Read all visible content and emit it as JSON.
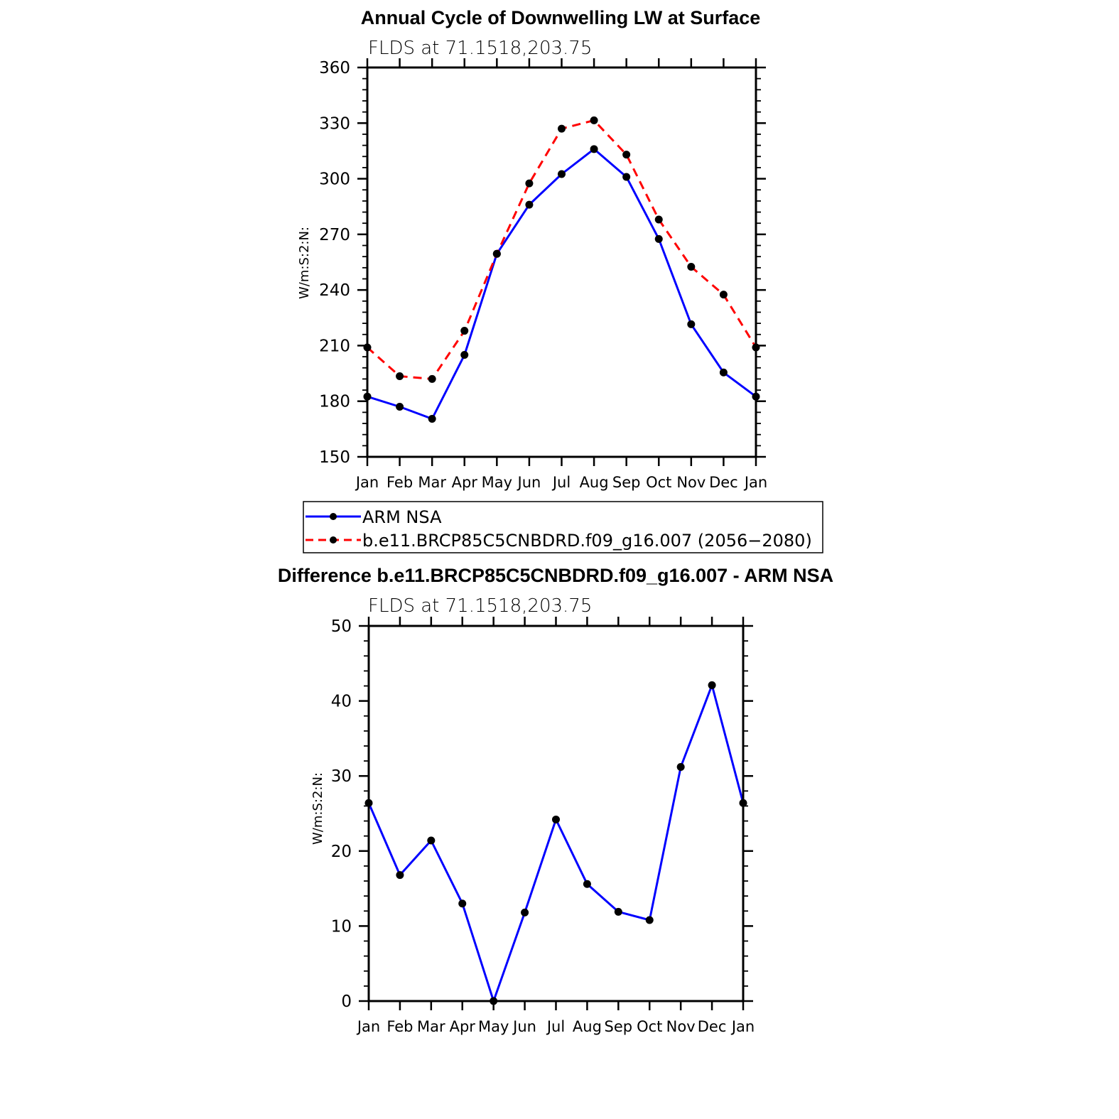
{
  "chart_data": [
    {
      "type": "line",
      "title": "Annual Cycle of Downwelling LW at Surface",
      "subtitle": "FLDS at 71.1518,203.75",
      "ylabel": "W/m:S:2:N:",
      "xlabel": "",
      "categories": [
        "Jan",
        "Feb",
        "Mar",
        "Apr",
        "May",
        "Jun",
        "Jul",
        "Aug",
        "Sep",
        "Oct",
        "Nov",
        "Dec",
        "Jan"
      ],
      "ylim": [
        150,
        360
      ],
      "yticks": [
        150,
        180,
        210,
        240,
        270,
        300,
        330,
        360
      ],
      "series": [
        {
          "name": "ARM NSA",
          "color": "#0000ff",
          "dash": "solid",
          "values": [
            182.5,
            177,
            170.5,
            205,
            259.5,
            286,
            302.5,
            316,
            301,
            267.5,
            221.5,
            195.5,
            182.5
          ]
        },
        {
          "name": "b.e11.BRCP85C5CNBDRD.f09_g16.007 (2056−2080)",
          "color": "#ff0000",
          "dash": "dashed",
          "values": [
            209,
            193.5,
            192,
            218,
            259.5,
            297.5,
            327,
            331.5,
            313,
            278,
            252.5,
            237.5,
            209
          ]
        }
      ],
      "legend_position": "below"
    },
    {
      "type": "line",
      "title": "Difference b.e11.BRCP85C5CNBDRD.f09_g16.007 - ARM NSA",
      "subtitle": "FLDS at 71.1518,203.75",
      "ylabel": "W/m:S:2:N:",
      "xlabel": "",
      "categories": [
        "Jan",
        "Feb",
        "Mar",
        "Apr",
        "May",
        "Jun",
        "Jul",
        "Aug",
        "Sep",
        "Oct",
        "Nov",
        "Dec",
        "Jan"
      ],
      "ylim": [
        0,
        50
      ],
      "yticks": [
        0,
        10,
        20,
        30,
        40,
        50
      ],
      "series": [
        {
          "color": "#0000ff",
          "dash": "solid",
          "values": [
            26.4,
            16.8,
            21.4,
            13,
            0,
            11.8,
            24.2,
            15.6,
            11.9,
            10.8,
            31.2,
            42.1,
            26.4
          ]
        }
      ]
    }
  ]
}
